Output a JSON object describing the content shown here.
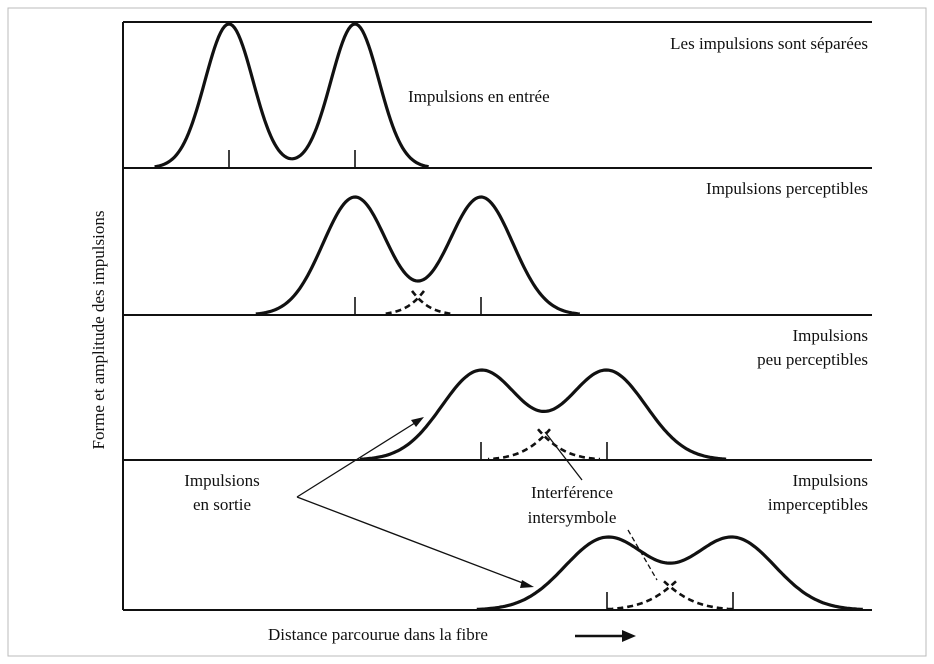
{
  "panels": [
    {
      "label": [
        "Les impulsions sont séparées"
      ]
    },
    {
      "label": [
        "Impulsions perceptibles"
      ]
    },
    {
      "label": [
        "Impulsions",
        "peu perceptibles"
      ]
    },
    {
      "label": [
        "Impulsions",
        "imperceptibles"
      ]
    }
  ],
  "input_label": "Impulsions en entrée",
  "output_label": [
    "Impulsions",
    "en sortie"
  ],
  "interference_label": [
    "Interférence",
    "intersymbole"
  ],
  "y_axis_label": "Forme et amplitude des impulsions",
  "x_axis_label": "Distance parcourue dans la fibre"
}
